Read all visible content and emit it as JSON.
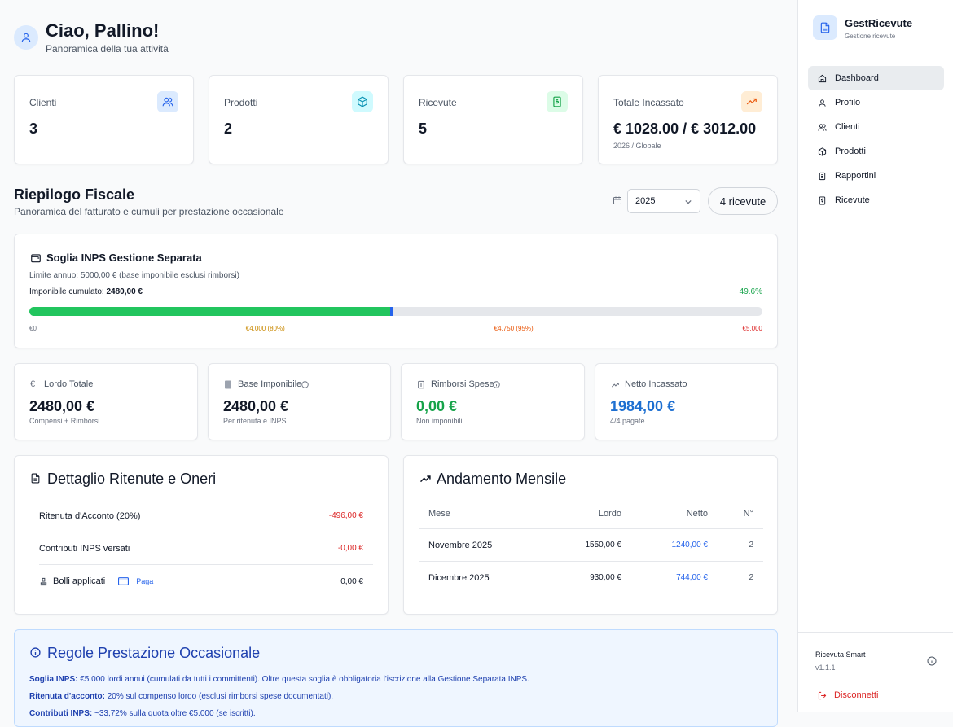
{
  "header": {
    "greeting": "Ciao, Pallino!",
    "subtitle": "Panoramica della tua attività"
  },
  "stats": [
    {
      "label": "Clienti",
      "value": "3"
    },
    {
      "label": "Prodotti",
      "value": "2"
    },
    {
      "label": "Ricevute",
      "value": "5"
    },
    {
      "label": "Totale Incassato",
      "value": "€ 1028.00 / € 3012.00",
      "note": "2026 / Globale"
    }
  ],
  "fiscal": {
    "title": "Riepilogo Fiscale",
    "subtitle": "Panoramica del fatturato e cumuli per prestazione occasionale",
    "year": "2025",
    "badge": "4 ricevute"
  },
  "inps": {
    "title": "Soglia INPS Gestione Separata",
    "limit": "Limite annuo: 5000,00 € (base imponibile esclusi rimborsi)",
    "cumulative_label": "Imponibile cumulato:",
    "cumulative_value": "2480,00 €",
    "progress": {
      "value": 49.6,
      "label": "49.6%"
    },
    "scale": [
      "€0",
      "€4.000 (80%)",
      "€4.750 (95%)",
      "€5.000"
    ]
  },
  "metrics": [
    {
      "label": "Lordo Totale",
      "value": "2480,00 €",
      "note": "Compensi + Rimborsi"
    },
    {
      "label": "Base Imponibile",
      "value": "2480,00 €",
      "note": "Per ritenuta e INPS"
    },
    {
      "label": "Rimborsi Spese",
      "value": "0,00 €",
      "note": "Non imponibili"
    },
    {
      "label": "Netto Incassato",
      "value": "1984,00 €",
      "note": "4/4 pagate"
    }
  ],
  "deductions": {
    "title": "Dettaglio Ritenute e Oneri",
    "rows": [
      [
        "Ritenuta d'Acconto (20%)",
        "-496,00 €"
      ],
      [
        "Contributi INPS versati",
        "-0,00 €"
      ],
      [
        "Bolli applicati",
        "0,00 €"
      ]
    ],
    "pay_link": "Paga"
  },
  "monthly": {
    "title": "Andamento Mensile",
    "headers": [
      "Mese",
      "Lordo",
      "Netto",
      "N°"
    ],
    "rows": [
      [
        "Novembre 2025",
        "1550,00 €",
        "1240,00 €",
        "2"
      ],
      [
        "Dicembre 2025",
        "930,00 €",
        "744,00 €",
        "2"
      ]
    ]
  },
  "rules": {
    "title": "Regole Prestazione Occasionale",
    "items": [
      {
        "label": "Soglia INPS:",
        "text": "€5.000 lordi annui (cumulati da tutti i committenti). Oltre questa soglia è obbligatoria l'iscrizione alla Gestione Separata INPS."
      },
      {
        "label": "Ritenuta d'acconto:",
        "text": "20% sul compenso lordo (esclusi rimborsi spese documentati)."
      },
      {
        "label": "Contributi INPS:",
        "text": "~33,72% sulla quota oltre €5.000 (se iscritti)."
      }
    ]
  },
  "sidebar": {
    "brand": "GestRicevute",
    "tagline": "Gestione ricevute",
    "nav": [
      "Dashboard",
      "Profilo",
      "Clienti",
      "Prodotti",
      "Rapportini",
      "Ricevute"
    ],
    "app_name": "Ricevuta Smart",
    "version": "v1.1.1",
    "logout": "Disconnetti"
  }
}
